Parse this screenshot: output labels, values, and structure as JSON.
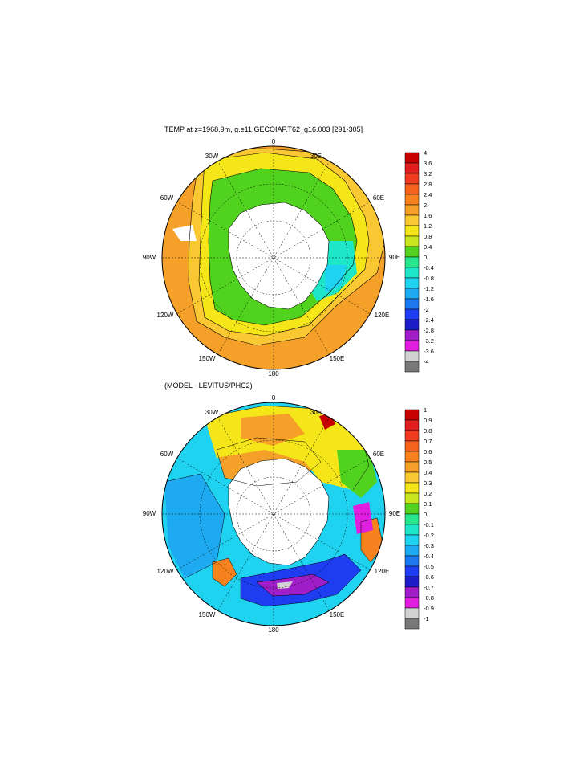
{
  "panels": [
    {
      "title": "TEMP at z=1968.9m, g.e11.GECOIAF.T62_g16.003 [291-305]",
      "lon_labels": [
        "0",
        "30E",
        "60E",
        "90E",
        "120E",
        "150E",
        "180",
        "150W",
        "120W",
        "90W",
        "60W",
        "30W"
      ],
      "colorbar": {
        "labels": [
          "4",
          "3.6",
          "3.2",
          "2.8",
          "2.4",
          "2",
          "1.6",
          "1.2",
          "0.8",
          "0.4",
          "0",
          "-0.4",
          "-0.8",
          "-1.2",
          "-1.6",
          "-2",
          "-2.4",
          "-2.8",
          "-3.2",
          "-3.6",
          "-4"
        ],
        "colors": [
          "#c80000",
          "#e01e1e",
          "#f03c1e",
          "#f5641e",
          "#f5821e",
          "#f5a028",
          "#fac832",
          "#f5e619",
          "#c8e61e",
          "#50d21e",
          "#28e68c",
          "#1ee6c8",
          "#1ed2f0",
          "#1eaaf0",
          "#1e78f0",
          "#1e3cf0",
          "#1e1ec8",
          "#a01ec8",
          "#e01ee0",
          "#d2d2d2",
          "#787878"
        ]
      }
    },
    {
      "title": "(MODEL - LEVITUS/PHC2)",
      "lon_labels": [
        "0",
        "30E",
        "60E",
        "90E",
        "120E",
        "150E",
        "180",
        "150W",
        "120W",
        "90W",
        "60W",
        "30W"
      ],
      "colorbar": {
        "labels": [
          "1",
          "0.9",
          "0.8",
          "0.7",
          "0.6",
          "0.5",
          "0.4",
          "0.3",
          "0.2",
          "0.1",
          "0",
          "-0.1",
          "-0.2",
          "-0.3",
          "-0.4",
          "-0.5",
          "-0.6",
          "-0.7",
          "-0.8",
          "-0.9",
          "-1"
        ],
        "colors": [
          "#c80000",
          "#e01e1e",
          "#f03c1e",
          "#f5641e",
          "#f5821e",
          "#f5a028",
          "#fac832",
          "#f5e619",
          "#c8e61e",
          "#50d21e",
          "#28e68c",
          "#1ee6c8",
          "#1ed2f0",
          "#1eaaf0",
          "#1e78f0",
          "#1e3cf0",
          "#1e1ec8",
          "#a01ec8",
          "#e01ee0",
          "#d2d2d2",
          "#787878"
        ]
      }
    }
  ]
}
